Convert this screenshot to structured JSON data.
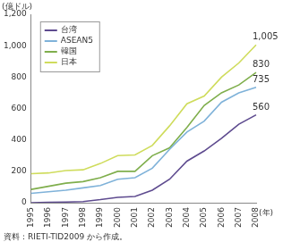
{
  "chart_data": {
    "type": "line",
    "y_label": "(億ドル)",
    "x_label": "(年)",
    "note": "資料：RIETI-TID2009 から作成。",
    "categories": [
      "1995",
      "1996",
      "1997",
      "1998",
      "1999",
      "2000",
      "2001",
      "2002",
      "2003",
      "2004",
      "2005",
      "2006",
      "2007",
      "2008"
    ],
    "series": [
      {
        "name": "台湾",
        "color": "#5e4b8f",
        "values": [
          0,
          3,
          5,
          8,
          20,
          35,
          40,
          80,
          150,
          265,
          330,
          410,
          500,
          560
        ],
        "value_labels": [
          null,
          null,
          null,
          null,
          null,
          null,
          null,
          null,
          null,
          null,
          null,
          null,
          null,
          "560"
        ]
      },
      {
        "name": "ASEAN5",
        "color": "#7fb2d9",
        "values": [
          60,
          70,
          80,
          95,
          110,
          150,
          160,
          220,
          340,
          450,
          520,
          640,
          700,
          735
        ],
        "value_labels": [
          null,
          null,
          null,
          null,
          null,
          null,
          null,
          null,
          null,
          null,
          null,
          null,
          null,
          "735"
        ]
      },
      {
        "name": "韓国",
        "color": "#7fae4c",
        "values": [
          85,
          105,
          125,
          135,
          160,
          200,
          200,
          300,
          350,
          480,
          620,
          700,
          750,
          830
        ],
        "value_labels": [
          null,
          null,
          null,
          null,
          null,
          null,
          null,
          null,
          null,
          null,
          null,
          null,
          null,
          "830"
        ]
      },
      {
        "name": "日本",
        "color": "#cfdc5c",
        "values": [
          185,
          190,
          205,
          210,
          250,
          300,
          305,
          365,
          490,
          630,
          680,
          800,
          890,
          1005
        ],
        "value_labels": [
          null,
          null,
          null,
          null,
          null,
          null,
          null,
          null,
          null,
          null,
          null,
          null,
          null,
          "1,005"
        ]
      }
    ],
    "ylim": [
      0,
      1200
    ],
    "yticks": [
      0,
      200,
      400,
      600,
      800,
      {
        "value": 1000,
        "label": "1,000"
      },
      {
        "value": 1200,
        "label": "1,200"
      }
    ],
    "grid": false,
    "legend": "top-left",
    "data_labels": true
  }
}
